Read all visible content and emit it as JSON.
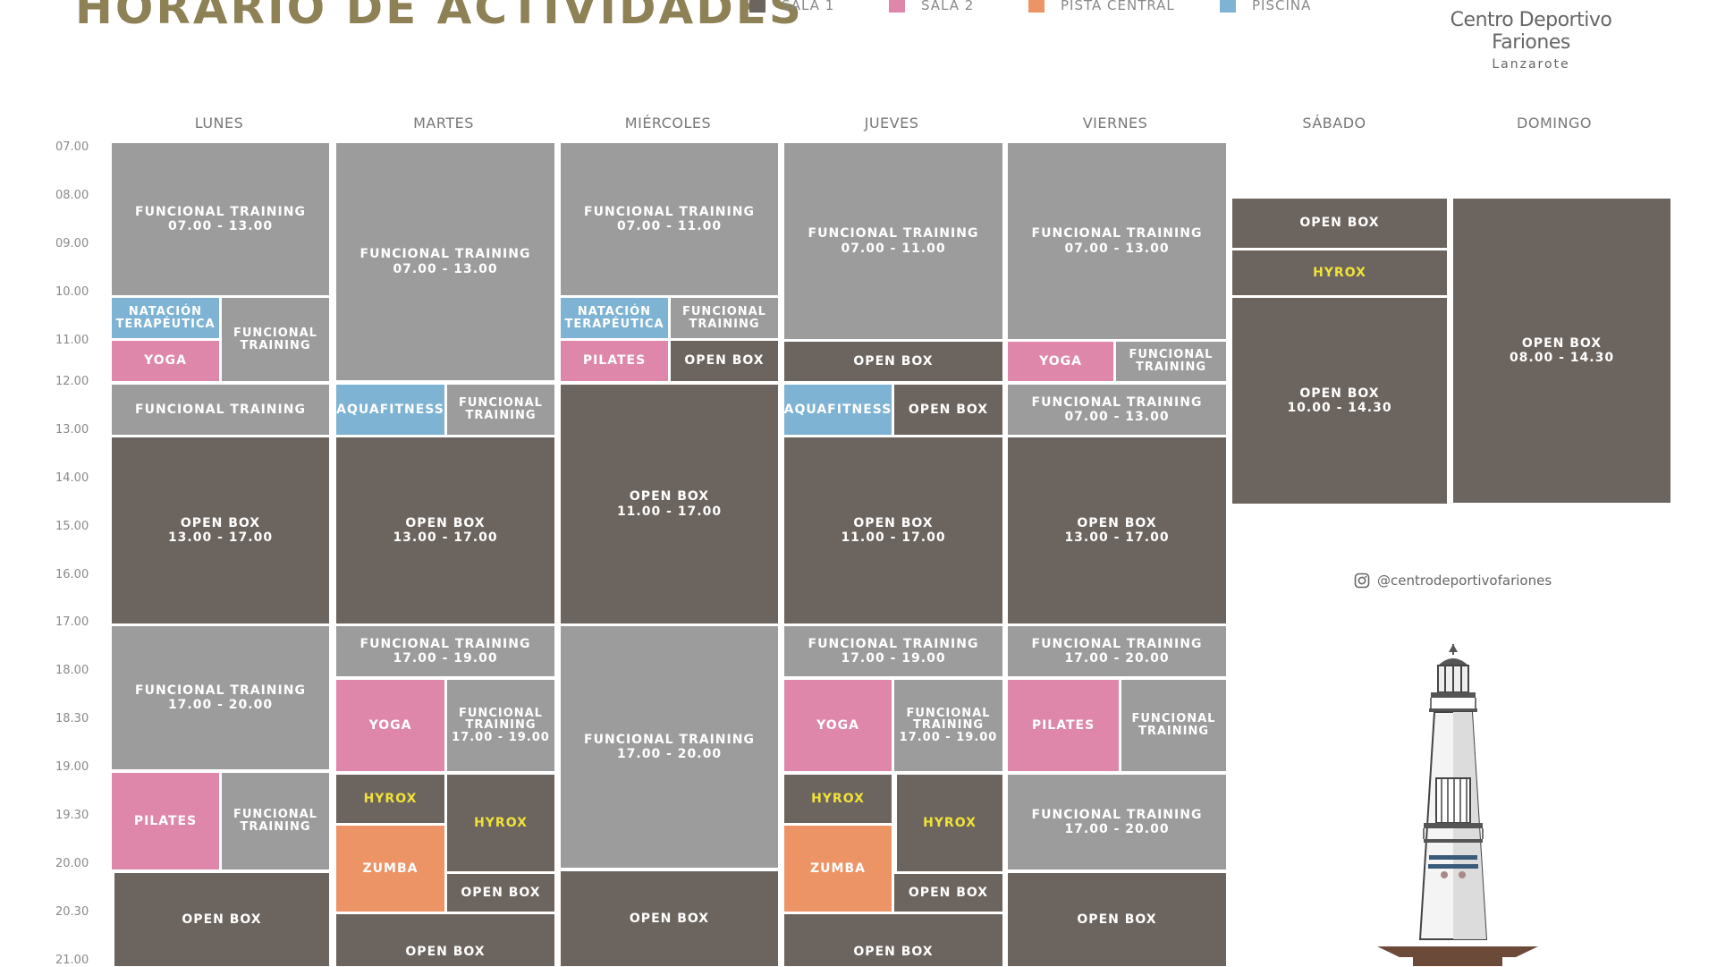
{
  "header": {
    "title": "HORARIO DE ACTIVIDADES",
    "legend": [
      {
        "label": "SALA 1",
        "color": "#6c645e"
      },
      {
        "label": "SALA 2",
        "color": "#de87ab"
      },
      {
        "label": "PISTA CENTRAL",
        "color": "#ed9467"
      },
      {
        "label": "PISCINA",
        "color": "#7eb3d3"
      }
    ],
    "brand_name": "Centro Deportivo Fariones",
    "brand_location": "Lanzarote"
  },
  "days": [
    "LUNES",
    "MARTES",
    "MIÉRCOLES",
    "JUEVES",
    "VIERNES",
    "SÁBADO",
    "DOMINGO"
  ],
  "times": [
    "07.00",
    "08.00",
    "09.00",
    "10.00",
    "11.00",
    "12.00",
    "13.00",
    "14.00",
    "15.00",
    "16.00",
    "17.00",
    "18.00",
    "18.30",
    "19.00",
    "19.30",
    "20.00",
    "20.30",
    "21.00"
  ],
  "blocks": {
    "lunes": [
      {
        "name": "FUNCIONAL TRAINING",
        "time": "07.00 - 13.00"
      },
      {
        "name": "NATACIÓN TERAPÉUTICA"
      },
      {
        "name": "YOGA"
      },
      {
        "name": "FUNCIONAL TRAINING"
      },
      {
        "name": "FUNCIONAL TRAINING"
      },
      {
        "name": "OPEN BOX",
        "time": "13.00 - 17.00"
      },
      {
        "name": "FUNCIONAL TRAINING",
        "time": "17.00 - 20.00"
      },
      {
        "name": "PILATES"
      },
      {
        "name": "FUNCIONAL TRAINING"
      },
      {
        "name": "OPEN BOX"
      }
    ],
    "martes": [
      {
        "name": "FUNCIONAL TRAINING",
        "time": "07.00 - 13.00"
      },
      {
        "name": "AQUAFITNESS"
      },
      {
        "name": "FUNCIONAL TRAINING"
      },
      {
        "name": "OPEN BOX",
        "time": "13.00 - 17.00"
      },
      {
        "name": "FUNCIONAL TRAINING",
        "time": "17.00 - 19.00"
      },
      {
        "name": "YOGA"
      },
      {
        "name": "FUNCIONAL TRAINING",
        "time": "17.00 - 19.00"
      },
      {
        "name": "HYROX"
      },
      {
        "name": "HYROX"
      },
      {
        "name": "ZUMBA"
      },
      {
        "name": "OPEN BOX"
      },
      {
        "name": "OPEN BOX"
      }
    ],
    "miercoles": [
      {
        "name": "FUNCIONAL TRAINING",
        "time": "07.00 - 11.00"
      },
      {
        "name": "NATACIÓN TERAPÉUTICA"
      },
      {
        "name": "FUNCIONAL TRAINING"
      },
      {
        "name": "PILATES"
      },
      {
        "name": "OPEN BOX"
      },
      {
        "name": "OPEN BOX",
        "time": "11.00 - 17.00"
      },
      {
        "name": "FUNCIONAL TRAINING",
        "time": "17.00 - 20.00"
      },
      {
        "name": "OPEN BOX"
      }
    ],
    "jueves": [
      {
        "name": "FUNCIONAL TRAINING",
        "time": "07.00 - 11.00"
      },
      {
        "name": "OPEN BOX"
      },
      {
        "name": "AQUAFITNESS"
      },
      {
        "name": "OPEN BOX"
      },
      {
        "name": "OPEN BOX",
        "time": "11.00 - 17.00"
      },
      {
        "name": "FUNCIONAL TRAINING",
        "time": "17.00 - 19.00"
      },
      {
        "name": "YOGA"
      },
      {
        "name": "FUNCIONAL TRAINING",
        "time": "17.00 - 19.00"
      },
      {
        "name": "HYROX"
      },
      {
        "name": "HYROX"
      },
      {
        "name": "ZUMBA"
      },
      {
        "name": "OPEN BOX"
      },
      {
        "name": "OPEN BOX"
      }
    ],
    "viernes": [
      {
        "name": "FUNCIONAL TRAINING",
        "time": "07.00 - 13.00"
      },
      {
        "name": "YOGA"
      },
      {
        "name": "FUNCIONAL TRAINING"
      },
      {
        "name": "FUNCIONAL TRAINING",
        "time": "07.00 - 13.00"
      },
      {
        "name": "OPEN BOX",
        "time": "13.00 - 17.00"
      },
      {
        "name": "FUNCIONAL TRAINING",
        "time": "17.00 - 20.00"
      },
      {
        "name": "PILATES"
      },
      {
        "name": "FUNCIONAL TRAINING"
      },
      {
        "name": "FUNCIONAL TRAINING",
        "time": "17.00 - 20.00"
      },
      {
        "name": "OPEN BOX"
      }
    ],
    "sabado": [
      {
        "name": "OPEN BOX"
      },
      {
        "name": "HYROX"
      },
      {
        "name": "OPEN BOX",
        "time": "10.00 - 14.30"
      }
    ],
    "domingo": [
      {
        "name": "OPEN BOX",
        "time": "08.00 - 14.30"
      }
    ]
  },
  "footer": {
    "instagram": "@centrodeportivofariones"
  }
}
